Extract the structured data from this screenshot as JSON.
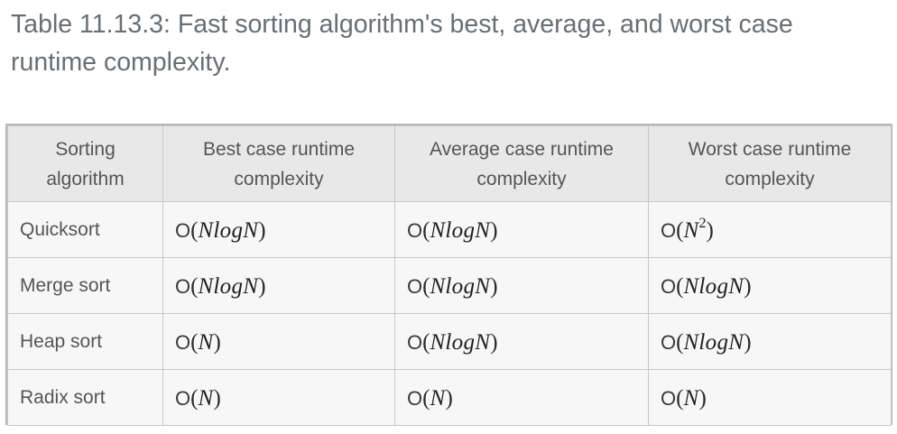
{
  "caption": "Table 11.13.3: Fast sorting algorithm's best, average, and worst case runtime complexity.",
  "table": {
    "headers": [
      "Sorting algorithm",
      "Best case runtime complexity",
      "Average case runtime complexity",
      "Worst case runtime complexity"
    ],
    "rows": [
      {
        "algorithm": "Quicksort",
        "best": {
          "o": "O",
          "lp": "(",
          "expr": "NlogN",
          "sup": "",
          "rp": ")"
        },
        "average": {
          "o": "O",
          "lp": "(",
          "expr": "NlogN",
          "sup": "",
          "rp": ")"
        },
        "worst": {
          "o": "O",
          "lp": "(",
          "expr": "N",
          "sup": "2",
          "rp": ")"
        }
      },
      {
        "algorithm": "Merge sort",
        "best": {
          "o": "O",
          "lp": "(",
          "expr": "NlogN",
          "sup": "",
          "rp": ")"
        },
        "average": {
          "o": "O",
          "lp": "(",
          "expr": "NlogN",
          "sup": "",
          "rp": ")"
        },
        "worst": {
          "o": "O",
          "lp": "(",
          "expr": "NlogN",
          "sup": "",
          "rp": ")"
        }
      },
      {
        "algorithm": "Heap sort",
        "best": {
          "o": "O",
          "lp": "(",
          "expr": "N",
          "sup": "",
          "rp": ")"
        },
        "average": {
          "o": "O",
          "lp": "(",
          "expr": "NlogN",
          "sup": "",
          "rp": ")"
        },
        "worst": {
          "o": "O",
          "lp": "(",
          "expr": "NlogN",
          "sup": "",
          "rp": ")"
        }
      },
      {
        "algorithm": "Radix sort",
        "best": {
          "o": "O",
          "lp": "(",
          "expr": "N",
          "sup": "",
          "rp": ")"
        },
        "average": {
          "o": "O",
          "lp": "(",
          "expr": "N",
          "sup": "",
          "rp": ")"
        },
        "worst": {
          "o": "O",
          "lp": "(",
          "expr": "N",
          "sup": "",
          "rp": ")"
        }
      }
    ]
  },
  "colors": {
    "caption_text": "#6a6f73",
    "header_bg": "#e8e8e8",
    "cell_bg": "#f7f7f7",
    "border": "#c8c8c8",
    "outer_border": "#b8b8b8"
  }
}
